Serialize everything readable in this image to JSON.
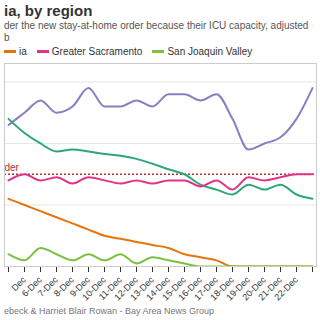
{
  "chart_data": {
    "type": "line",
    "title": "ia, by region",
    "subtitle": "der the new stay-at-home order because their ICU capacity, adjusted b",
    "caption": "ebeck & Harriet Blair Rowan - Bay Area News Group",
    "categories": [
      null,
      "Dec",
      "6-Dec",
      "7-Dec",
      "8-Dec",
      "9-Dec",
      "10-Dec",
      "11-Dec",
      "12-Dec",
      "13-Dec",
      "14-Dec",
      "15-Dec",
      "16-Dec",
      "17-Dec",
      "18-Dec",
      "19-Dec",
      "20-Dec",
      "21-Dec",
      "22-Dec",
      null
    ],
    "series": [
      {
        "color": "#8e7cc3",
        "values": [
          23,
          25,
          27,
          25,
          26,
          29,
          26,
          26,
          27,
          26,
          28,
          28,
          27,
          28,
          24,
          19,
          20,
          21,
          24,
          29
        ]
      },
      {
        "color": "#2aa876",
        "values": [
          24,
          21.7,
          20,
          18.7,
          19,
          18.7,
          18.3,
          18,
          17.5,
          16.7,
          15.8,
          15,
          13.3,
          12.5,
          11.7,
          13.3,
          12.5,
          13.3,
          11.7,
          11
        ]
      },
      {
        "name": "ia",
        "color": "#e8730c",
        "values": [
          11,
          10,
          9,
          8,
          7,
          6,
          5,
          4.5,
          4,
          3.5,
          3,
          2,
          1.5,
          1,
          0,
          0,
          0,
          0,
          0,
          0
        ]
      },
      {
        "name": "Greater Sacramento",
        "color": "#e0348a",
        "values": [
          14,
          15,
          14,
          14.5,
          13.5,
          14.5,
          14,
          13.5,
          14,
          13.5,
          14,
          14,
          13,
          14,
          12.5,
          14.5,
          14,
          14.5,
          15,
          15
        ]
      },
      {
        "name": "San Joaquin Valley",
        "color": "#7ac142",
        "values": [
          2,
          1,
          3,
          2,
          1,
          2,
          1,
          2,
          0.5,
          1.5,
          1,
          0.5,
          0,
          0,
          0,
          0,
          0,
          0,
          0,
          0
        ]
      }
    ],
    "annotations": [
      {
        "label": "der",
        "value": 15,
        "color": "#b03030",
        "line_style": "dotted"
      }
    ],
    "ylim": [
      0,
      33
    ],
    "yticks": [
      0,
      10,
      20,
      30
    ],
    "grid": true,
    "tick_labels": "x"
  }
}
